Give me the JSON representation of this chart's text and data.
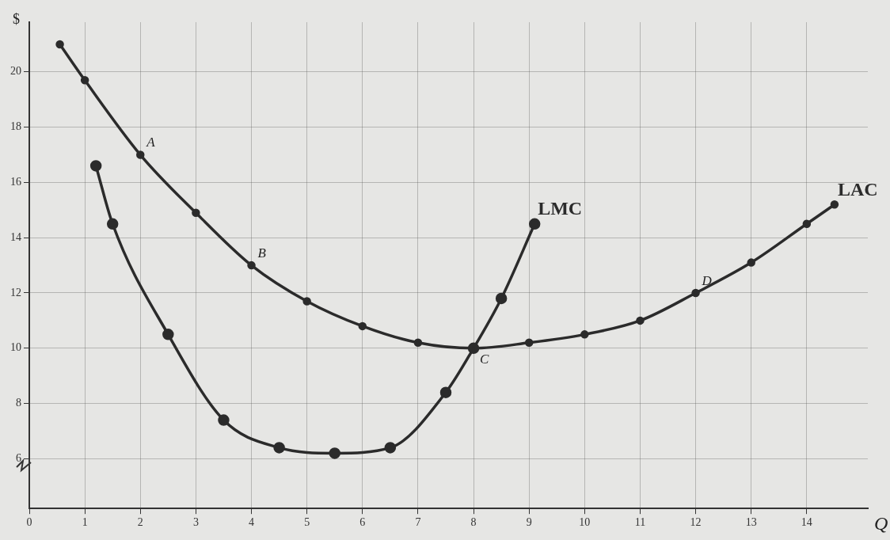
{
  "chart_data": {
    "type": "line",
    "xlabel": "Q",
    "ylabel": "$",
    "xlim": [
      0,
      15.1
    ],
    "ylim": [
      4.2,
      21.8
    ],
    "xticks": [
      0,
      1,
      2,
      3,
      4,
      5,
      6,
      7,
      8,
      9,
      10,
      11,
      12,
      13,
      14
    ],
    "yticks": [
      6,
      8,
      10,
      12,
      14,
      16,
      18,
      20
    ],
    "grid": true,
    "legend": false,
    "marker": "circle",
    "line_style": "solid",
    "series": [
      {
        "name": "LAC",
        "color": "#2b2b2b",
        "x": [
          0.55,
          1,
          2,
          3,
          4,
          5,
          6,
          7,
          8,
          9,
          10,
          11,
          12,
          13,
          14,
          14.5
        ],
        "values": [
          21,
          19.7,
          17,
          14.9,
          13,
          11.7,
          10.8,
          10.2,
          10,
          10.2,
          10.5,
          11,
          12,
          13.1,
          14.5,
          15.2
        ]
      },
      {
        "name": "LMC",
        "color": "#2b2b2b",
        "x": [
          1.2,
          1.5,
          2.5,
          3.5,
          4.5,
          5.5,
          6.5,
          7.5,
          8,
          8.5,
          9.1
        ],
        "values": [
          16.6,
          14.5,
          10.5,
          7.4,
          6.4,
          6.2,
          6.4,
          8.4,
          10,
          11.8,
          14.5
        ]
      }
    ],
    "annotations": [
      {
        "text": "A",
        "x": 2,
        "y": 17
      },
      {
        "text": "B",
        "x": 4,
        "y": 13
      },
      {
        "text": "C",
        "x": 8,
        "y": 10
      },
      {
        "text": "D",
        "x": 12,
        "y": 12
      }
    ]
  }
}
